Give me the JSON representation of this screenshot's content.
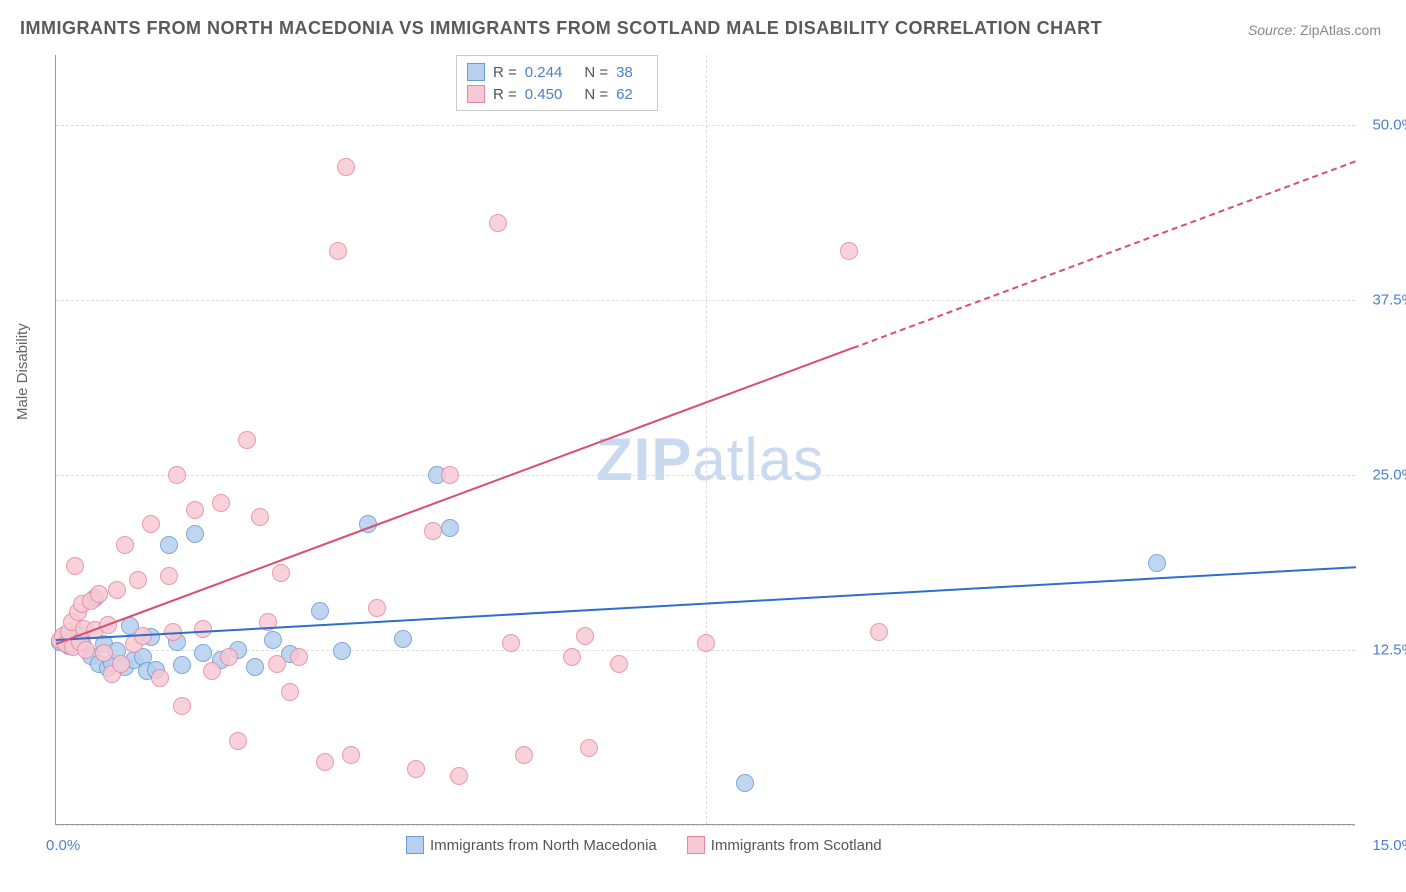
{
  "title": "IMMIGRANTS FROM NORTH MACEDONIA VS IMMIGRANTS FROM SCOTLAND MALE DISABILITY CORRELATION CHART",
  "source_label": "Source:",
  "source_value": "ZipAtlas.com",
  "y_axis_label": "Male Disability",
  "watermark_zip": "ZIP",
  "watermark_atlas": "atlas",
  "chart": {
    "type": "scatter",
    "xlim": [
      0,
      15
    ],
    "ylim": [
      0,
      55
    ],
    "x_ticks": [
      0,
      15
    ],
    "x_tick_labels": [
      "0.0%",
      "15.0%"
    ],
    "y_ticks": [
      12.5,
      25,
      37.5,
      50
    ],
    "y_tick_labels": [
      "12.5%",
      "25.0%",
      "37.5%",
      "50.0%"
    ],
    "y_gridlines": [
      0,
      12.5,
      25,
      37.5,
      50
    ],
    "x_gridlines": [
      7.5
    ],
    "background_color": "#ffffff",
    "grid_color": "#dddddd",
    "axis_color": "#999999",
    "series": [
      {
        "name": "Immigrants from North Macedonia",
        "color_fill": "#b6d0ee",
        "color_stroke": "#6a9ad8",
        "marker_size": 18,
        "r_value": "0.244",
        "n_value": "38",
        "trend": {
          "x1": 0,
          "y1": 13.3,
          "x2": 15,
          "y2": 18.5,
          "color": "#2e6fc9",
          "dash_after_x": 15
        },
        "points": [
          [
            0.05,
            13.1
          ],
          [
            0.1,
            13.3
          ],
          [
            0.15,
            12.8
          ],
          [
            0.2,
            13.2
          ],
          [
            0.25,
            13.6
          ],
          [
            0.3,
            13.0
          ],
          [
            0.4,
            12.1
          ],
          [
            0.45,
            16.2
          ],
          [
            0.5,
            11.5
          ],
          [
            0.55,
            12.9
          ],
          [
            0.6,
            11.2
          ],
          [
            0.65,
            11.6
          ],
          [
            0.7,
            12.4
          ],
          [
            0.8,
            11.3
          ],
          [
            0.85,
            14.2
          ],
          [
            0.9,
            11.8
          ],
          [
            1.0,
            12.0
          ],
          [
            1.05,
            11.0
          ],
          [
            1.1,
            13.4
          ],
          [
            1.15,
            11.1
          ],
          [
            1.3,
            20.0
          ],
          [
            1.4,
            13.1
          ],
          [
            1.45,
            11.4
          ],
          [
            1.6,
            20.8
          ],
          [
            1.7,
            12.3
          ],
          [
            1.9,
            11.8
          ],
          [
            2.1,
            12.5
          ],
          [
            2.3,
            11.3
          ],
          [
            2.5,
            13.2
          ],
          [
            2.7,
            12.2
          ],
          [
            3.05,
            15.3
          ],
          [
            3.3,
            12.4
          ],
          [
            3.6,
            21.5
          ],
          [
            4.0,
            13.3
          ],
          [
            4.4,
            25.0
          ],
          [
            4.55,
            21.2
          ],
          [
            7.95,
            3.0
          ],
          [
            12.7,
            18.7
          ]
        ]
      },
      {
        "name": "Immigrants from Scotland",
        "color_fill": "#f7c9d4",
        "color_stroke": "#e6899f",
        "marker_size": 18,
        "r_value": "0.450",
        "n_value": "62",
        "trend": {
          "x1": 0,
          "y1": 13.0,
          "x2": 15,
          "y2": 47.5,
          "color": "#d94f70",
          "dash_after_x": 9.2
        },
        "points": [
          [
            0.05,
            13.2
          ],
          [
            0.08,
            13.5
          ],
          [
            0.12,
            12.9
          ],
          [
            0.15,
            13.8
          ],
          [
            0.18,
            14.5
          ],
          [
            0.2,
            12.7
          ],
          [
            0.22,
            18.5
          ],
          [
            0.25,
            15.2
          ],
          [
            0.28,
            13.1
          ],
          [
            0.3,
            15.8
          ],
          [
            0.32,
            14.0
          ],
          [
            0.35,
            12.5
          ],
          [
            0.4,
            16.0
          ],
          [
            0.45,
            13.9
          ],
          [
            0.5,
            16.5
          ],
          [
            0.55,
            12.3
          ],
          [
            0.6,
            14.3
          ],
          [
            0.65,
            10.8
          ],
          [
            0.7,
            16.8
          ],
          [
            0.75,
            11.5
          ],
          [
            0.8,
            20.0
          ],
          [
            0.9,
            12.9
          ],
          [
            0.95,
            17.5
          ],
          [
            1.0,
            13.5
          ],
          [
            1.1,
            21.5
          ],
          [
            1.2,
            10.5
          ],
          [
            1.3,
            17.8
          ],
          [
            1.35,
            13.8
          ],
          [
            1.4,
            25.0
          ],
          [
            1.45,
            8.5
          ],
          [
            1.6,
            22.5
          ],
          [
            1.7,
            14.0
          ],
          [
            1.8,
            11.0
          ],
          [
            1.9,
            23.0
          ],
          [
            2.0,
            12.0
          ],
          [
            2.1,
            6.0
          ],
          [
            2.2,
            27.5
          ],
          [
            2.35,
            22.0
          ],
          [
            2.45,
            14.5
          ],
          [
            2.55,
            11.5
          ],
          [
            2.6,
            18.0
          ],
          [
            2.7,
            9.5
          ],
          [
            2.8,
            12.0
          ],
          [
            3.1,
            4.5
          ],
          [
            3.25,
            41.0
          ],
          [
            3.35,
            47.0
          ],
          [
            3.4,
            5.0
          ],
          [
            3.7,
            15.5
          ],
          [
            4.15,
            4.0
          ],
          [
            4.35,
            21.0
          ],
          [
            4.55,
            25.0
          ],
          [
            4.65,
            3.5
          ],
          [
            5.1,
            43.0
          ],
          [
            5.25,
            13.0
          ],
          [
            5.4,
            5.0
          ],
          [
            5.95,
            12.0
          ],
          [
            6.1,
            13.5
          ],
          [
            6.15,
            5.5
          ],
          [
            6.5,
            11.5
          ],
          [
            7.5,
            13.0
          ],
          [
            9.15,
            41.0
          ],
          [
            9.5,
            13.8
          ]
        ]
      }
    ],
    "legend_bottom": [
      {
        "label": "Immigrants from North Macedonia",
        "fill": "#b6d0ee",
        "stroke": "#6a9ad8"
      },
      {
        "label": "Immigrants from Scotland",
        "fill": "#f7c9d4",
        "stroke": "#e6899f"
      }
    ]
  }
}
